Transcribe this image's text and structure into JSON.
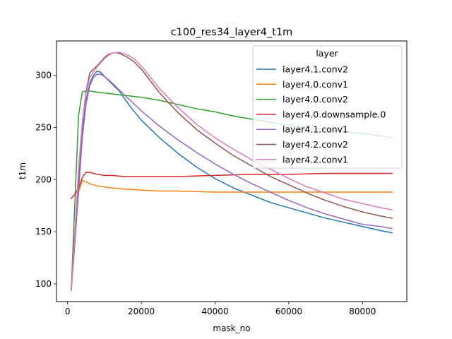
{
  "chart_data": {
    "type": "line",
    "title": "c100_res34_layer4_t1m",
    "xlabel": "mask_no",
    "ylabel": "t1m",
    "xlim": [
      -3000,
      92000
    ],
    "ylim": [
      83,
      333
    ],
    "xticks": [
      0,
      20000,
      40000,
      60000,
      80000
    ],
    "yticks": [
      100,
      150,
      200,
      250,
      300
    ],
    "grid": false,
    "legend": {
      "title": "layer",
      "placement": "top-right"
    },
    "series": [
      {
        "name": "layer4.1.conv2",
        "color": "#1f77b4",
        "x": [
          1000,
          2000,
          3000,
          4000,
          5000,
          6000,
          7000,
          8000,
          9000,
          10000,
          12000,
          14000,
          17000,
          20000,
          25000,
          30000,
          35000,
          40000,
          45000,
          50000,
          55000,
          60000,
          65000,
          70000,
          75000,
          80000,
          85000,
          88000
        ],
        "y": [
          94,
          145,
          198,
          245,
          275,
          292,
          300,
          304,
          303,
          299,
          292,
          285,
          270,
          257,
          240,
          225,
          212,
          201,
          192,
          185,
          178,
          173,
          168,
          163,
          159,
          155,
          151,
          149
        ]
      },
      {
        "name": "layer4.0.conv1",
        "color": "#ff7f0e",
        "x": [
          1000,
          2000,
          3000,
          4000,
          5000,
          6000,
          7000,
          8000,
          10000,
          12000,
          15000,
          20000,
          25000,
          30000,
          40000,
          50000,
          60000,
          70000,
          80000,
          88000
        ],
        "y": [
          94,
          150,
          188,
          199,
          198,
          196,
          195,
          194,
          193,
          192,
          191,
          190,
          189,
          189,
          188,
          188,
          188,
          188,
          188,
          188
        ]
      },
      {
        "name": "layer4.0.conv2",
        "color": "#2ca02c",
        "x": [
          1000,
          2000,
          3000,
          4000,
          5000,
          6000,
          8000,
          10000,
          15000,
          20000,
          25000,
          30000,
          35000,
          40000,
          45000,
          50000,
          55000,
          60000,
          65000,
          70000,
          75000,
          80000,
          85000,
          88000
        ],
        "y": [
          94,
          180,
          262,
          284,
          285,
          285,
          284,
          283,
          281,
          279,
          276,
          272,
          268,
          265,
          261,
          258,
          255,
          252,
          250,
          248,
          246,
          244,
          242,
          240
        ]
      },
      {
        "name": "layer4.0.downsample.0",
        "color": "#d62728",
        "x": [
          1000,
          2000,
          3000,
          4000,
          5000,
          6000,
          7000,
          8000,
          10000,
          12000,
          15000,
          20000,
          30000,
          40000,
          50000,
          60000,
          70000,
          80000,
          88000
        ],
        "y": [
          182,
          186,
          192,
          202,
          207,
          207,
          206,
          205,
          204,
          204,
          203,
          203,
          203,
          204,
          205,
          205,
          206,
          206,
          206
        ]
      },
      {
        "name": "layer4.1.conv1",
        "color": "#9467bd",
        "x": [
          1000,
          2000,
          3000,
          4000,
          5000,
          6000,
          7000,
          8000,
          9000,
          10000,
          12000,
          14000,
          17000,
          20000,
          25000,
          30000,
          35000,
          40000,
          45000,
          50000,
          55000,
          60000,
          65000,
          70000,
          75000,
          80000,
          85000,
          88000
        ],
        "y": [
          94,
          140,
          190,
          240,
          272,
          290,
          298,
          301,
          301,
          299,
          293,
          286,
          276,
          266,
          251,
          238,
          226,
          215,
          205,
          196,
          188,
          180,
          173,
          167,
          162,
          157,
          155,
          153
        ]
      },
      {
        "name": "layer4.2.conv2",
        "color": "#8c564b",
        "x": [
          1000,
          2000,
          3000,
          4000,
          5000,
          6000,
          7000,
          8000,
          9000,
          10000,
          11000,
          12000,
          13000,
          14000,
          16000,
          18000,
          20000,
          25000,
          30000,
          35000,
          40000,
          45000,
          50000,
          55000,
          60000,
          65000,
          70000,
          75000,
          80000,
          85000,
          88000
        ],
        "y": [
          94,
          150,
          210,
          255,
          284,
          302,
          306,
          309,
          313,
          317,
          320,
          321,
          322,
          321,
          318,
          313,
          306,
          283,
          264,
          248,
          235,
          223,
          213,
          203,
          195,
          187,
          180,
          174,
          169,
          165,
          163
        ]
      },
      {
        "name": "layer4.2.conv1",
        "color": "#e377c2",
        "x": [
          1000,
          2000,
          3000,
          4000,
          5000,
          6000,
          7000,
          8000,
          9000,
          10000,
          11000,
          12000,
          13000,
          14000,
          16000,
          18000,
          20000,
          25000,
          30000,
          35000,
          40000,
          45000,
          50000,
          55000,
          60000,
          65000,
          70000,
          75000,
          80000,
          85000,
          88000
        ],
        "y": [
          94,
          150,
          210,
          255,
          282,
          298,
          303,
          308,
          312,
          316,
          319,
          321,
          322,
          322,
          320,
          316,
          309,
          287,
          269,
          253,
          240,
          229,
          219,
          210,
          201,
          193,
          187,
          181,
          177,
          173,
          171
        ]
      }
    ]
  }
}
